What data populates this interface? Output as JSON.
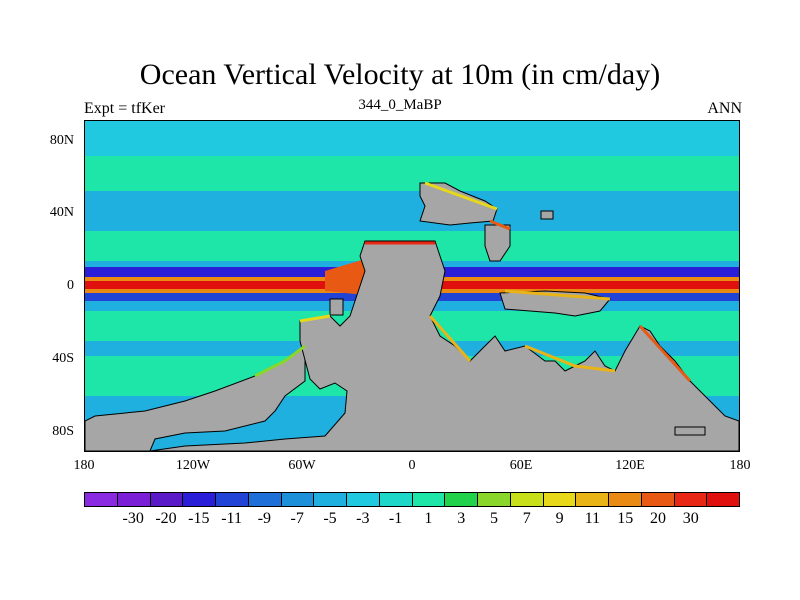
{
  "title": "Ocean Vertical Velocity at 10m (in cm/day)",
  "subtitle_left": "Expt = tfKer",
  "subtitle_center": "344_0_MaBP",
  "subtitle_right": "ANN",
  "x_ticks": [
    "180",
    "120W",
    "60W",
    "0",
    "60E",
    "120E",
    "180"
  ],
  "y_ticks": [
    "80N",
    "40N",
    "0",
    "40S",
    "80S"
  ],
  "land_color": "#a6a6a6",
  "legend": {
    "colors": [
      "#8a2be2",
      "#7a1fd6",
      "#5a1ac8",
      "#2a1ed8",
      "#2244d6",
      "#1f6fd8",
      "#1c90d8",
      "#1fb0e0",
      "#20c8e0",
      "#1dd8c8",
      "#1de6a8",
      "#22d24a",
      "#8ad62a",
      "#c8e01a",
      "#e8d81a",
      "#e8b418",
      "#e88a14",
      "#e85a14",
      "#e82814",
      "#e0100e"
    ],
    "labels": [
      "-30",
      "-20",
      "-15",
      "-11",
      "-9",
      "-7",
      "-5",
      "-3",
      "-1",
      "1",
      "3",
      "5",
      "7",
      "9",
      "11",
      "15",
      "20",
      "30"
    ]
  }
}
